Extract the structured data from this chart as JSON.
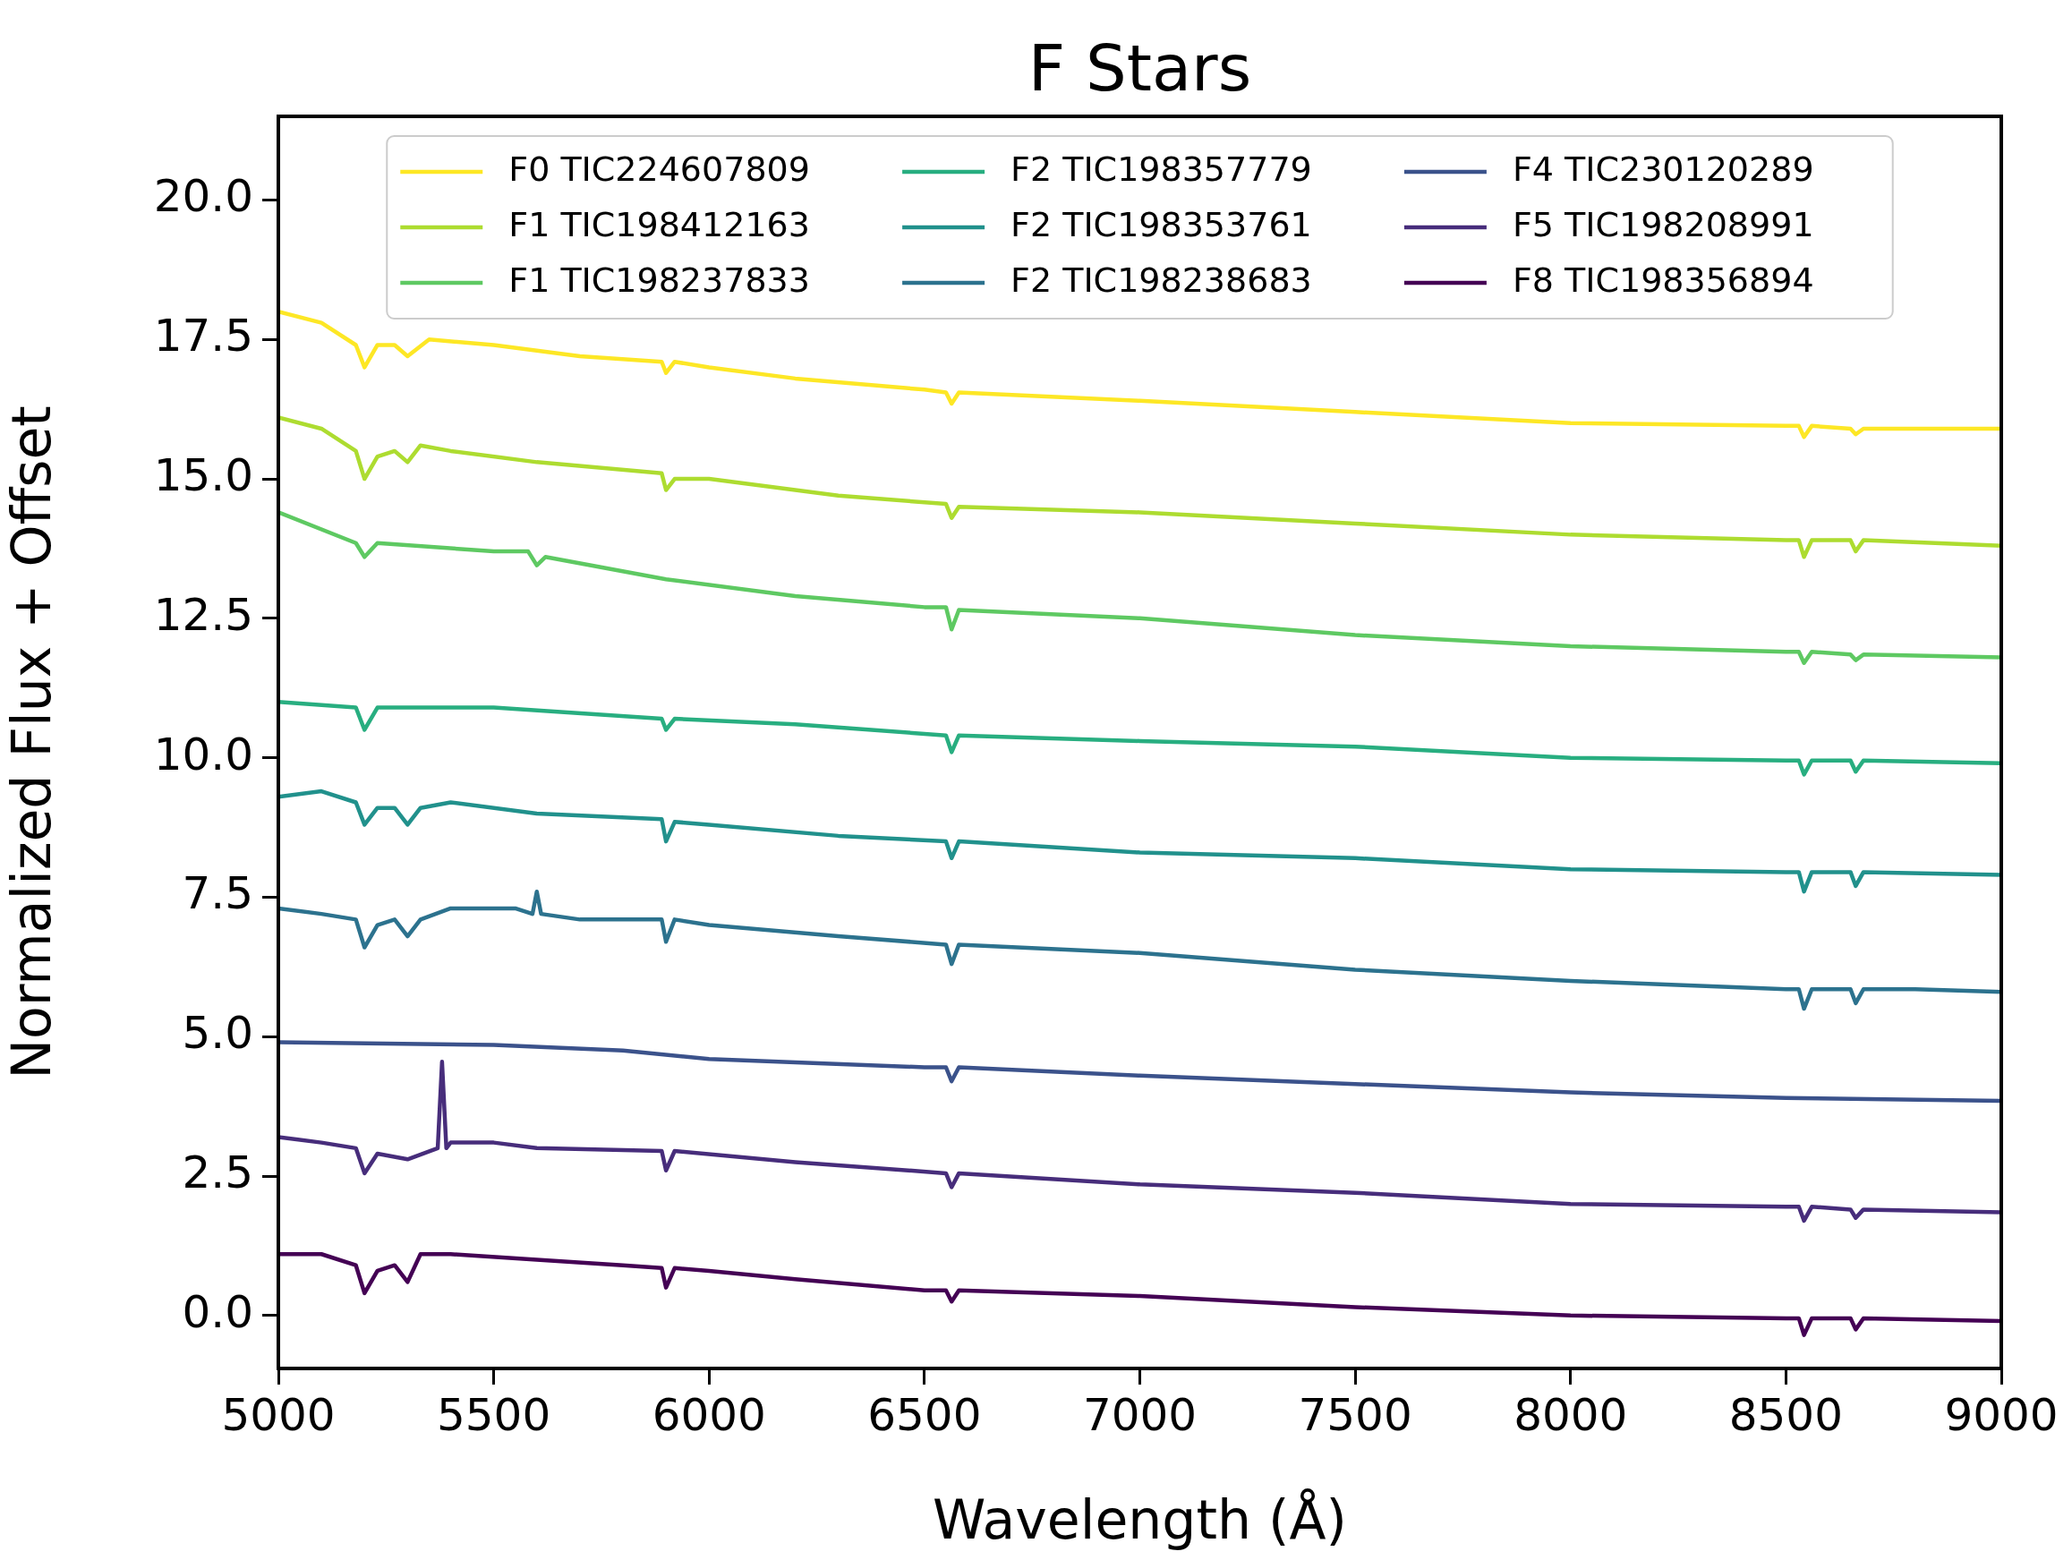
{
  "chart_data": {
    "type": "line",
    "title": "F Stars",
    "xlabel": "Wavelength (Å)",
    "ylabel": "Normalized Flux + Offset",
    "xlim": [
      5000,
      9000
    ],
    "xticks": [
      5000,
      5500,
      6000,
      6500,
      7000,
      7500,
      8000,
      8500,
      9000
    ],
    "ylim": [
      -0.95,
      21.5
    ],
    "yticks": [
      {
        "value": 0,
        "label": "0.0"
      },
      {
        "value": 2.5,
        "label": "2.5"
      },
      {
        "value": 5,
        "label": "5.0"
      },
      {
        "value": 7.5,
        "label": "7.5"
      },
      {
        "value": 10,
        "label": "10.0"
      },
      {
        "value": 12.5,
        "label": "12.5"
      },
      {
        "value": 15,
        "label": "15.0"
      },
      {
        "value": 17.5,
        "label": "17.5"
      },
      {
        "value": 20,
        "label": "20.0"
      }
    ],
    "legend": "top",
    "marker": "none",
    "line_style": "solid",
    "series": [
      {
        "name": "F0 TIC224607809",
        "color": "#fde725",
        "x": [
          5000,
          5100,
          5180,
          5200,
          5230,
          5270,
          5300,
          5350,
          5500,
          5700,
          5890,
          5900,
          5920,
          6000,
          6200,
          6500,
          6550,
          6563,
          6580,
          7000,
          7500,
          8000,
          8500,
          8530,
          8542,
          8560,
          8650,
          8662,
          8680,
          9000
        ],
        "values": [
          18.0,
          17.8,
          17.4,
          17.0,
          17.4,
          17.4,
          17.2,
          17.5,
          17.4,
          17.2,
          17.1,
          16.9,
          17.1,
          17.0,
          16.8,
          16.6,
          16.55,
          16.35,
          16.55,
          16.4,
          16.2,
          16.0,
          15.95,
          15.95,
          15.75,
          15.95,
          15.9,
          15.8,
          15.9,
          15.9
        ]
      },
      {
        "name": "F1 TIC198412163",
        "color": "#addc30",
        "x": [
          5000,
          5100,
          5180,
          5200,
          5230,
          5270,
          5300,
          5330,
          5400,
          5600,
          5890,
          5900,
          5920,
          6000,
          6300,
          6550,
          6563,
          6580,
          7000,
          7500,
          8000,
          8500,
          8530,
          8542,
          8560,
          8650,
          8662,
          8680,
          9000
        ],
        "values": [
          16.1,
          15.9,
          15.5,
          15.0,
          15.4,
          15.5,
          15.3,
          15.6,
          15.5,
          15.3,
          15.1,
          14.8,
          15.0,
          15.0,
          14.7,
          14.55,
          14.3,
          14.5,
          14.4,
          14.2,
          14.0,
          13.9,
          13.9,
          13.6,
          13.9,
          13.9,
          13.7,
          13.9,
          13.8
        ]
      },
      {
        "name": "F1 TIC198237833",
        "color": "#5ec962",
        "x": [
          5000,
          5180,
          5200,
          5230,
          5500,
          5580,
          5600,
          5620,
          5900,
          6200,
          6500,
          6550,
          6563,
          6580,
          7000,
          7500,
          8000,
          8500,
          8530,
          8542,
          8560,
          8650,
          8662,
          8680,
          9000
        ],
        "values": [
          14.4,
          13.85,
          13.6,
          13.85,
          13.7,
          13.7,
          13.45,
          13.6,
          13.2,
          12.9,
          12.7,
          12.7,
          12.3,
          12.65,
          12.5,
          12.2,
          12.0,
          11.9,
          11.9,
          11.7,
          11.9,
          11.85,
          11.75,
          11.85,
          11.8
        ]
      },
      {
        "name": "F2 TIC198357779",
        "color": "#28ae80",
        "x": [
          5000,
          5180,
          5200,
          5230,
          5500,
          5890,
          5900,
          5920,
          6200,
          6550,
          6563,
          6580,
          7000,
          7500,
          8000,
          8500,
          8530,
          8542,
          8560,
          8650,
          8662,
          8680,
          9000
        ],
        "values": [
          11.0,
          10.9,
          10.5,
          10.9,
          10.9,
          10.7,
          10.5,
          10.7,
          10.6,
          10.4,
          10.1,
          10.4,
          10.3,
          10.2,
          10.0,
          9.95,
          9.95,
          9.7,
          9.95,
          9.95,
          9.75,
          9.95,
          9.9
        ]
      },
      {
        "name": "F2 TIC198353761",
        "color": "#21918c",
        "x": [
          5000,
          5100,
          5180,
          5200,
          5230,
          5270,
          5300,
          5330,
          5400,
          5600,
          5890,
          5900,
          5920,
          6000,
          6300,
          6550,
          6563,
          6580,
          7000,
          7500,
          8000,
          8500,
          8530,
          8542,
          8560,
          8650,
          8662,
          8680,
          9000
        ],
        "values": [
          9.3,
          9.4,
          9.2,
          8.8,
          9.1,
          9.1,
          8.8,
          9.1,
          9.2,
          9.0,
          8.9,
          8.5,
          8.85,
          8.8,
          8.6,
          8.5,
          8.2,
          8.5,
          8.3,
          8.2,
          8.0,
          7.95,
          7.95,
          7.6,
          7.95,
          7.95,
          7.7,
          7.95,
          7.9
        ]
      },
      {
        "name": "F2 TIC198238683",
        "color": "#2c728e",
        "x": [
          5000,
          5100,
          5180,
          5200,
          5230,
          5270,
          5300,
          5330,
          5400,
          5550,
          5590,
          5600,
          5610,
          5700,
          5890,
          5900,
          5920,
          6000,
          6300,
          6550,
          6563,
          6580,
          7000,
          7500,
          8000,
          8500,
          8530,
          8542,
          8560,
          8650,
          8662,
          8680,
          8800,
          9000
        ],
        "values": [
          7.3,
          7.2,
          7.1,
          6.6,
          7.0,
          7.1,
          6.8,
          7.1,
          7.3,
          7.3,
          7.2,
          7.6,
          7.2,
          7.1,
          7.1,
          6.7,
          7.1,
          7.0,
          6.8,
          6.65,
          6.3,
          6.65,
          6.5,
          6.2,
          6.0,
          5.85,
          5.85,
          5.5,
          5.85,
          5.85,
          5.6,
          5.85,
          5.85,
          5.8
        ]
      },
      {
        "name": "F4 TIC230120289",
        "color": "#3b528b",
        "x": [
          5000,
          5500,
          5800,
          6000,
          6500,
          6550,
          6563,
          6580,
          7000,
          7500,
          8000,
          8500,
          9000
        ],
        "values": [
          4.9,
          4.85,
          4.75,
          4.6,
          4.45,
          4.45,
          4.2,
          4.45,
          4.3,
          4.15,
          4.0,
          3.9,
          3.85
        ]
      },
      {
        "name": "F5 TIC198208991",
        "color": "#472d7b",
        "x": [
          5000,
          5100,
          5180,
          5200,
          5230,
          5300,
          5370,
          5380,
          5390,
          5400,
          5500,
          5600,
          5890,
          5900,
          5920,
          6200,
          6550,
          6563,
          6580,
          7000,
          7500,
          8000,
          8500,
          8530,
          8542,
          8560,
          8650,
          8662,
          8680,
          9000
        ],
        "values": [
          3.2,
          3.1,
          3.0,
          2.55,
          2.9,
          2.8,
          3.0,
          4.55,
          3.0,
          3.1,
          3.1,
          3.0,
          2.95,
          2.6,
          2.95,
          2.75,
          2.55,
          2.3,
          2.55,
          2.35,
          2.2,
          2.0,
          1.95,
          1.95,
          1.7,
          1.95,
          1.9,
          1.75,
          1.9,
          1.85
        ]
      },
      {
        "name": "F8 TIC198356894",
        "color": "#440154",
        "x": [
          5000,
          5100,
          5180,
          5200,
          5230,
          5270,
          5300,
          5330,
          5400,
          5600,
          5800,
          5890,
          5900,
          5920,
          6000,
          6200,
          6500,
          6550,
          6563,
          6580,
          7000,
          7500,
          8000,
          8500,
          8530,
          8542,
          8560,
          8650,
          8662,
          8680,
          9000
        ],
        "values": [
          1.1,
          1.1,
          0.9,
          0.4,
          0.8,
          0.9,
          0.6,
          1.1,
          1.1,
          1.0,
          0.9,
          0.85,
          0.5,
          0.85,
          0.8,
          0.65,
          0.45,
          0.45,
          0.25,
          0.45,
          0.35,
          0.15,
          0.0,
          -0.05,
          -0.05,
          -0.35,
          -0.05,
          -0.05,
          -0.25,
          -0.05,
          -0.1
        ]
      }
    ]
  }
}
